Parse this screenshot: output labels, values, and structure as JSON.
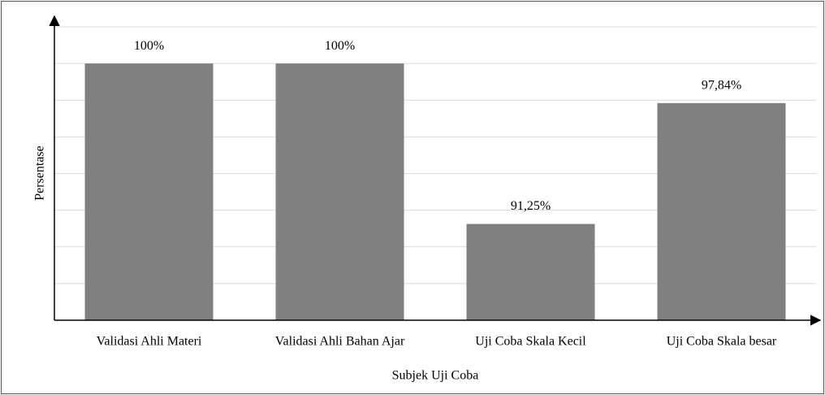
{
  "chart_data": {
    "type": "bar",
    "categories": [
      "Validasi Ahli Materi",
      "Validasi Ahli Bahan Ajar",
      "Uji Coba Skala Kecil",
      "Uji Coba Skala besar"
    ],
    "values": [
      100,
      100,
      91.25,
      97.84
    ],
    "value_labels": [
      "100%",
      "100%",
      "91,25%",
      "97,84%"
    ],
    "color": "#808080",
    "x_label": "Subjek Uji Coba",
    "y_label": "Persentase",
    "ylim": [
      86,
      102
    ],
    "yticks": [
      88,
      90,
      92,
      94,
      96,
      98,
      100,
      102
    ],
    "grid": true
  }
}
